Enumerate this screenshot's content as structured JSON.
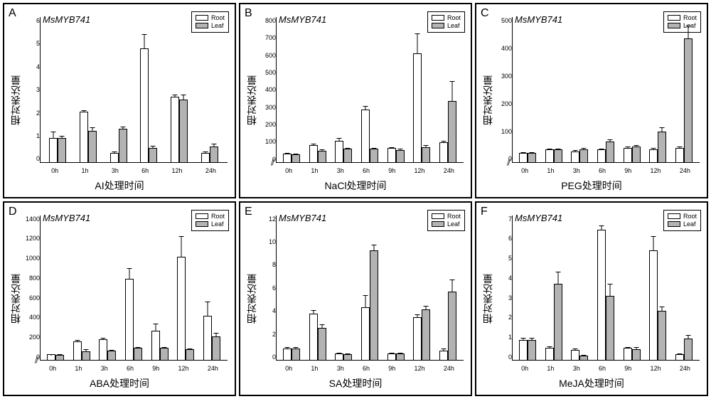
{
  "gene_name": "MsMYB741",
  "y_axis_label": "相对表达量",
  "legend": {
    "root": "Root",
    "leaf": "Leaf"
  },
  "colors": {
    "root": "#ffffff",
    "leaf": "#b3b3b3",
    "border": "#000000",
    "background": "#ffffff"
  },
  "font": {
    "tick_size": 9,
    "label_size": 14,
    "title_size": 13,
    "letter_size": 16
  },
  "panels": [
    {
      "letter": "A",
      "x_label": "AI处理时间",
      "categories": [
        "0h",
        "1h",
        "3h",
        "6h",
        "12h",
        "24h"
      ],
      "ymax": 6,
      "ytick_step": 1,
      "axis_break": false,
      "root": [
        1.0,
        2.1,
        0.4,
        4.7,
        2.7,
        0.4
      ],
      "leaf": [
        1.0,
        1.3,
        1.4,
        0.6,
        2.6,
        0.65
      ],
      "root_err": [
        0.3,
        0.05,
        0.05,
        0.6,
        0.1,
        0.05
      ],
      "leaf_err": [
        0.1,
        0.15,
        0.1,
        0.1,
        0.2,
        0.15
      ]
    },
    {
      "letter": "B",
      "x_label": "NaCl处理时间",
      "categories": [
        "0h",
        "1h",
        "3h",
        "6h",
        "9h",
        "12h",
        "24h"
      ],
      "ymax": 800,
      "ytick_step": 100,
      "axis_break": true,
      "root": [
        50,
        95,
        120,
        290,
        80,
        600,
        110
      ],
      "leaf": [
        45,
        65,
        75,
        75,
        70,
        85,
        340
      ],
      "root_err": [
        5,
        8,
        15,
        20,
        5,
        110,
        10
      ],
      "leaf_err": [
        5,
        8,
        5,
        5,
        5,
        10,
        110
      ]
    },
    {
      "letter": "C",
      "x_label": "PEG处理时间",
      "categories": [
        "0h",
        "1h",
        "3h",
        "6h",
        "9h",
        "12h",
        "24h"
      ],
      "ymax": 450,
      "ytick_step": 100,
      "axis_break": true,
      "root": [
        30,
        40,
        35,
        40,
        45,
        40,
        45
      ],
      "leaf": [
        30,
        40,
        40,
        65,
        50,
        95,
        385
      ],
      "root_err": [
        3,
        3,
        3,
        3,
        5,
        5,
        5
      ],
      "leaf_err": [
        3,
        3,
        5,
        8,
        5,
        15,
        40
      ]
    },
    {
      "letter": "D",
      "x_label": "ABA处理时间",
      "categories": [
        "0h",
        "1h",
        "3h",
        "6h",
        "9h",
        "12h",
        "24h"
      ],
      "ymax": 1400,
      "ytick_step": 200,
      "axis_break": true,
      "root": [
        60,
        185,
        205,
        790,
        290,
        1000,
        430
      ],
      "leaf": [
        55,
        90,
        95,
        120,
        120,
        110,
        230
      ],
      "root_err": [
        5,
        15,
        15,
        100,
        70,
        200,
        140
      ],
      "leaf_err": [
        5,
        20,
        8,
        10,
        15,
        10,
        40
      ]
    },
    {
      "letter": "E",
      "x_label": "SA处理时间",
      "categories": [
        "0h",
        "1h",
        "3h",
        "6h",
        "9h",
        "12h",
        "24h"
      ],
      "ymax": 12,
      "ytick_step": 2,
      "axis_break": false,
      "root": [
        1.0,
        3.9,
        0.6,
        4.4,
        0.6,
        3.6,
        0.8
      ],
      "leaf": [
        1.0,
        2.7,
        0.5,
        9.1,
        0.6,
        4.2,
        5.7
      ],
      "root_err": [
        0.1,
        0.3,
        0.05,
        1.0,
        0.05,
        0.2,
        0.2
      ],
      "leaf_err": [
        0.1,
        0.3,
        0.1,
        0.5,
        0.05,
        0.3,
        1.0
      ]
    },
    {
      "letter": "F",
      "x_label": "MeJA处理时间",
      "categories": [
        "0h",
        "1h",
        "3h",
        "6h",
        "9h",
        "12h",
        "24h"
      ],
      "ymax": 7,
      "ytick_step": 1,
      "axis_break": false,
      "root": [
        1.0,
        0.6,
        0.5,
        6.3,
        0.6,
        5.3,
        0.3
      ],
      "leaf": [
        1.0,
        3.7,
        0.25,
        3.1,
        0.55,
        2.4,
        1.05
      ],
      "root_err": [
        0.1,
        0.1,
        0.1,
        0.2,
        0.05,
        0.7,
        0.05
      ],
      "leaf_err": [
        0.1,
        0.6,
        0.05,
        0.6,
        0.1,
        0.2,
        0.2
      ]
    }
  ]
}
